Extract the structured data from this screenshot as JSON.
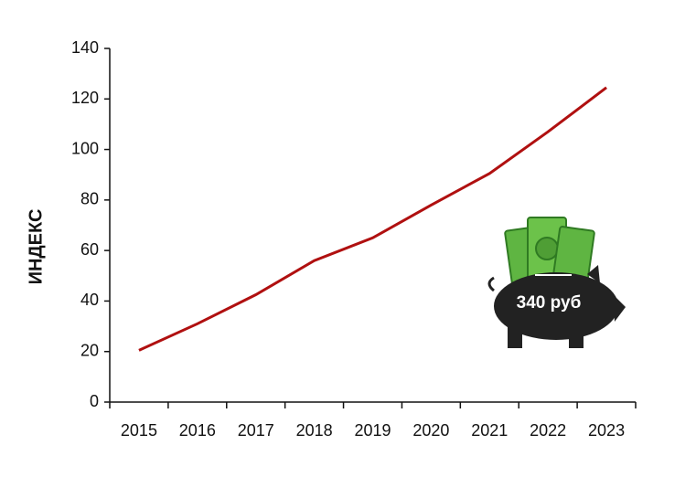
{
  "chart_data": {
    "type": "line",
    "y_label": "ИНДЕКС",
    "categories": [
      "2015",
      "2016",
      "2017",
      "2018",
      "2019",
      "2020",
      "2021",
      "2022",
      "2023"
    ],
    "series": [
      {
        "name": "Индекс",
        "color": "#b01010",
        "values": [
          20.5,
          31,
          42.5,
          56,
          65,
          78,
          90.5,
          107,
          124.5
        ]
      }
    ],
    "ylim": [
      0,
      140
    ],
    "yticks": [
      0,
      20,
      40,
      60,
      80,
      100,
      120,
      140
    ],
    "grid": false,
    "annotation": "340 руб"
  }
}
